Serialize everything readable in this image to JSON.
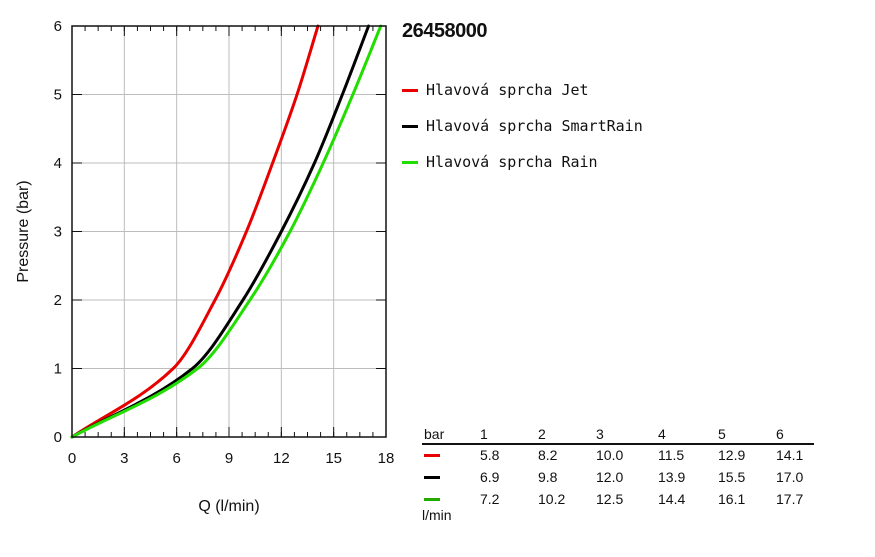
{
  "model": "26458000",
  "chart_data": {
    "type": "line",
    "xlabel": "Q (l/min)",
    "ylabel": "Pressure (bar)",
    "xlim": [
      0,
      18
    ],
    "ylim": [
      0,
      6
    ],
    "xticks": [
      "0",
      "3",
      "6",
      "9",
      "12",
      "15",
      "18"
    ],
    "yticks": [
      "0",
      "1",
      "2",
      "3",
      "4",
      "5",
      "6"
    ],
    "grid": true,
    "legend_position": "right",
    "series": [
      {
        "name": "Hlavová sprcha Jet",
        "color": "#e80000",
        "x": [
          0,
          5.8,
          8.2,
          10.0,
          11.5,
          12.9,
          14.1
        ],
        "y": [
          0,
          1,
          2,
          3,
          4,
          5,
          6
        ]
      },
      {
        "name": "Hlavová sprcha SmartRain",
        "color": "#000000",
        "x": [
          0,
          6.9,
          9.8,
          12.0,
          13.9,
          15.5,
          17.0
        ],
        "y": [
          0,
          1,
          2,
          3,
          4,
          5,
          6
        ]
      },
      {
        "name": "Hlavová sprcha Rain",
        "color": "#22dd00",
        "x": [
          0,
          7.2,
          10.2,
          12.5,
          14.4,
          16.1,
          17.7
        ],
        "y": [
          0,
          1,
          2,
          3,
          4,
          5,
          6
        ]
      }
    ]
  },
  "table": {
    "row_label": "bar",
    "unit_label": "l/min",
    "headers": [
      "1",
      "2",
      "3",
      "4",
      "5",
      "6"
    ],
    "rows": [
      {
        "color": "#e80000",
        "values": [
          "5.8",
          "8.2",
          "10.0",
          "11.5",
          "12.9",
          "14.1"
        ]
      },
      {
        "color": "#000000",
        "values": [
          "6.9",
          "9.8",
          "12.0",
          "13.9",
          "15.5",
          "17.0"
        ]
      },
      {
        "color": "#22aa00",
        "values": [
          "7.2",
          "10.2",
          "12.5",
          "14.4",
          "16.1",
          "17.7"
        ]
      }
    ]
  }
}
